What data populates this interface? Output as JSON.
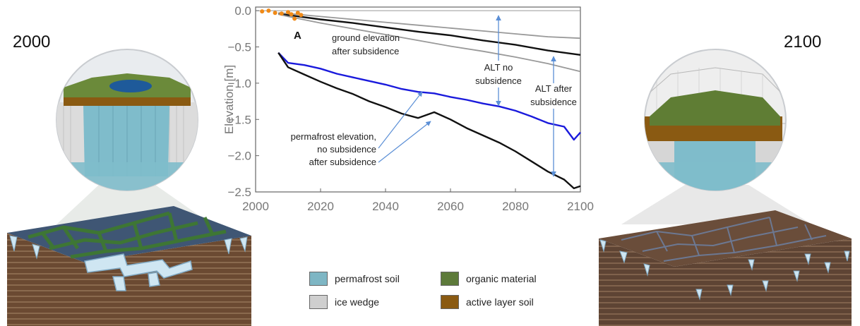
{
  "years": {
    "left": "2000",
    "right": "2100"
  },
  "chart_data": {
    "type": "line",
    "panel_label": "A",
    "xlabel": "",
    "ylabel": "Elevation [m]",
    "xlim": [
      2000,
      2100
    ],
    "ylim": [
      -2.5,
      0.05
    ],
    "xticks": [
      "2000",
      "2020",
      "2040",
      "2060",
      "2080",
      "2100"
    ],
    "yticks": [
      "0.0",
      "-0.5",
      "-1.0",
      "-1.5",
      "-2.0",
      "-2.5"
    ],
    "series": [
      {
        "key": "ground_mid",
        "color": "#111111",
        "x": [
          2007,
          2010,
          2020,
          2030,
          2040,
          2050,
          2060,
          2070,
          2080,
          2090,
          2100
        ],
        "y": [
          -0.04,
          -0.06,
          -0.12,
          -0.17,
          -0.23,
          -0.29,
          -0.34,
          -0.41,
          -0.47,
          -0.55,
          -0.61
        ]
      },
      {
        "key": "ground_upper",
        "color": "#999999",
        "x": [
          2007,
          2010,
          2020,
          2030,
          2040,
          2050,
          2060,
          2070,
          2080,
          2090,
          2100
        ],
        "y": [
          -0.03,
          -0.04,
          -0.08,
          -0.12,
          -0.16,
          -0.2,
          -0.24,
          -0.28,
          -0.32,
          -0.36,
          -0.38
        ]
      },
      {
        "key": "ground_lower",
        "color": "#999999",
        "x": [
          2007,
          2010,
          2020,
          2030,
          2040,
          2050,
          2060,
          2070,
          2080,
          2090,
          2100
        ],
        "y": [
          -0.05,
          -0.08,
          -0.17,
          -0.25,
          -0.33,
          -0.41,
          -0.49,
          -0.56,
          -0.64,
          -0.73,
          -0.84
        ]
      },
      {
        "key": "permafrost_no_subsidence",
        "color": "#1a1adc",
        "x": [
          2007,
          2010,
          2015,
          2020,
          2025,
          2030,
          2035,
          2040,
          2045,
          2050,
          2055,
          2060,
          2065,
          2070,
          2075,
          2080,
          2085,
          2090,
          2095,
          2098,
          2100
        ],
        "y": [
          -0.58,
          -0.72,
          -0.75,
          -0.8,
          -0.87,
          -0.92,
          -0.97,
          -1.02,
          -1.08,
          -1.12,
          -1.14,
          -1.19,
          -1.23,
          -1.28,
          -1.32,
          -1.38,
          -1.46,
          -1.55,
          -1.6,
          -1.78,
          -1.68
        ]
      },
      {
        "key": "permafrost_after_subsidence",
        "color": "#111111",
        "x": [
          2007,
          2010,
          2015,
          2020,
          2025,
          2030,
          2035,
          2040,
          2045,
          2050,
          2055,
          2060,
          2065,
          2070,
          2075,
          2080,
          2085,
          2090,
          2095,
          2098,
          2100
        ],
        "y": [
          -0.58,
          -0.78,
          -0.88,
          -0.98,
          -1.07,
          -1.15,
          -1.25,
          -1.33,
          -1.42,
          -1.48,
          -1.4,
          -1.5,
          -1.62,
          -1.72,
          -1.82,
          -1.94,
          -2.08,
          -2.22,
          -2.33,
          -2.45,
          -2.42
        ]
      }
    ],
    "observations": {
      "color": "#f08a18",
      "x": [
        2002,
        2004,
        2006,
        2008,
        2010,
        2011,
        2012,
        2013,
        2014
      ],
      "y": [
        -0.01,
        0.0,
        -0.03,
        -0.04,
        -0.02,
        -0.05,
        -0.11,
        -0.03,
        -0.06
      ]
    },
    "annotations": {
      "ground": [
        "ground elevation",
        "after subsidence"
      ],
      "alt_no": [
        "ALT no",
        "subsidence"
      ],
      "alt_after": [
        "ALT after",
        "subsidence"
      ],
      "permafrost": [
        "permafrost elevation,",
        "no subsidence",
        "after subsidence"
      ]
    }
  },
  "legend": [
    {
      "label": "permafrost soil",
      "color": "#7eb6c4"
    },
    {
      "label": "organic material",
      "color": "#5d7a3a"
    },
    {
      "label": "ice wedge",
      "color": "#cfcfcf"
    },
    {
      "label": "active layer soil",
      "color": "#8a5a12"
    }
  ]
}
